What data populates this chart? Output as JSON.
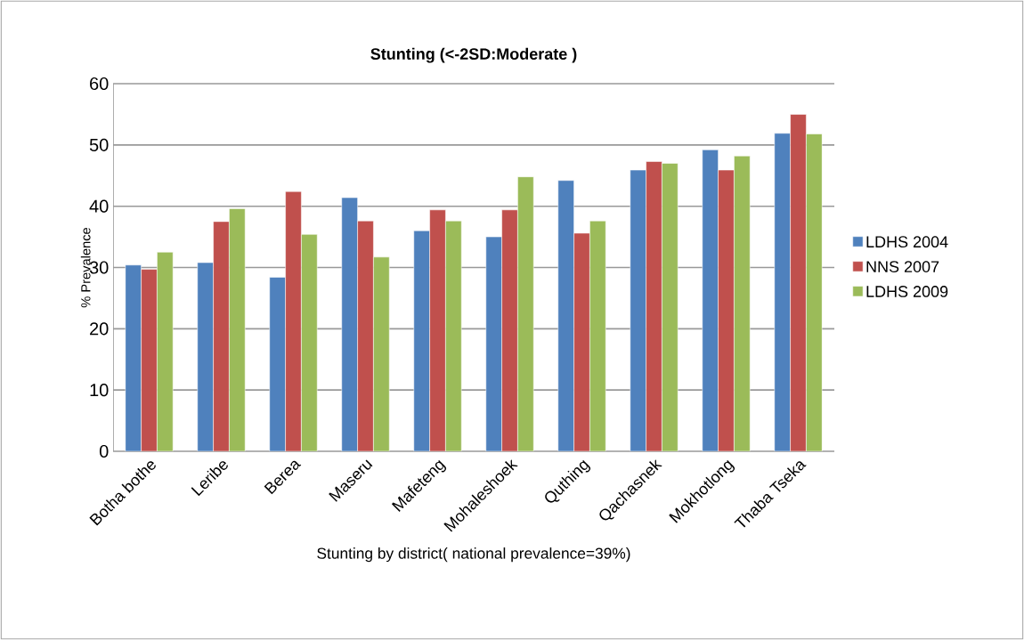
{
  "chart_data": {
    "type": "bar",
    "title": "Stunting (<-2SD:Moderate )",
    "xlabel": "Stunting by district( national prevalence=39%)",
    "ylabel": "% Prevalence",
    "categories": [
      "Botha bothe",
      "Leribe",
      "Berea",
      "Maseru",
      "Mafeteng",
      "Mohaleshoek",
      "Quthing",
      "Qachasnek",
      "Mokhotlong",
      "Thaba Tseka"
    ],
    "series": [
      {
        "name": "LDHS 2004",
        "color": "#4f81bd",
        "values": [
          30.4,
          30.8,
          28.4,
          41.4,
          36.0,
          35.0,
          44.2,
          45.9,
          49.2,
          51.9
        ]
      },
      {
        "name": "NNS 2007",
        "color": "#c0504d",
        "values": [
          29.7,
          37.5,
          42.4,
          37.6,
          39.4,
          39.4,
          35.6,
          47.3,
          45.9,
          55.0
        ]
      },
      {
        "name": "LDHS 2009",
        "color": "#9bbb59",
        "values": [
          32.5,
          39.6,
          35.4,
          31.7,
          37.6,
          44.8,
          37.6,
          47.0,
          48.2,
          51.8
        ]
      }
    ],
    "ylim": [
      0,
      60
    ],
    "yticks": [
      0,
      10,
      20,
      30,
      40,
      50,
      60
    ],
    "grid": "y",
    "legend": "right"
  }
}
